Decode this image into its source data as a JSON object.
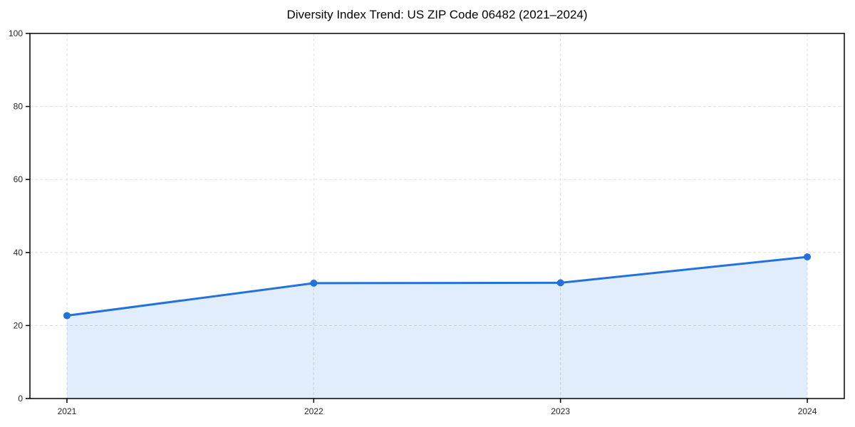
{
  "chart_data": {
    "type": "area",
    "title": "Diversity Index Trend: US ZIP Code 06482 (2021–2024)",
    "x": [
      "2021",
      "2022",
      "2023",
      "2024"
    ],
    "series": [
      {
        "name": "Diversity Index",
        "values": [
          22.7,
          31.6,
          31.7,
          38.8
        ]
      }
    ],
    "xlabel": "",
    "ylabel": "",
    "ylim": [
      0,
      100
    ],
    "yticks": [
      0,
      20,
      40,
      60,
      80,
      100
    ],
    "grid": "dashed",
    "legend_position": "none",
    "colors": {
      "line": "#2272de",
      "marker": "#2272de",
      "fill": "rgba(34,114,222,0.13)",
      "grid": "#e0e0e0",
      "spine": "#000000",
      "tick_label": "#262626",
      "title": "#000000",
      "background": "#ffffff"
    }
  }
}
